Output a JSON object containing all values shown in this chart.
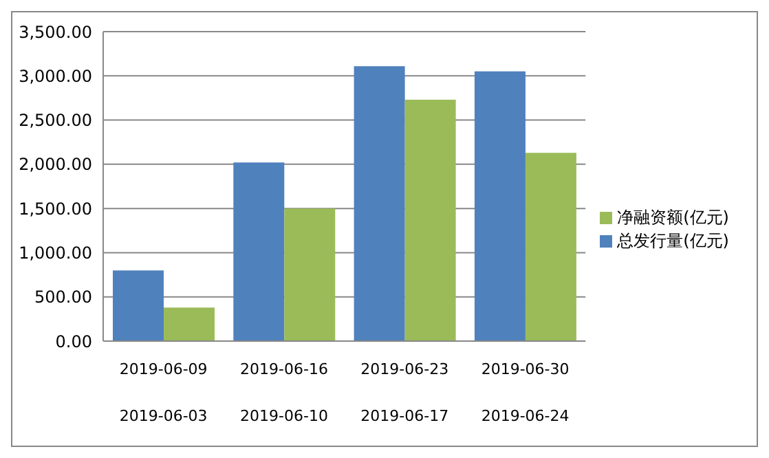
{
  "chart_data": {
    "type": "bar",
    "categories": [
      "2019-06-09\n2019-06-03",
      "2019-06-16\n2019-06-10",
      "2019-06-23\n2019-06-17",
      "2019-06-30\n2019-06-24"
    ],
    "series": [
      {
        "name": "总发行量(亿元)",
        "color": "#4f81bd",
        "values": [
          800,
          2020,
          3110,
          3050
        ]
      },
      {
        "name": "净融资额(亿元)",
        "color": "#9bbb59",
        "values": [
          380,
          1500,
          2730,
          2130
        ]
      }
    ],
    "ylim": [
      0,
      3500
    ],
    "yticks": [
      {
        "value": 0,
        "label": "0.00"
      },
      {
        "value": 500,
        "label": "500.00"
      },
      {
        "value": 1000,
        "label": "1,000.00"
      },
      {
        "value": 1500,
        "label": "1,500.00"
      },
      {
        "value": 2000,
        "label": "2,000.00"
      },
      {
        "value": 2500,
        "label": "2,500.00"
      },
      {
        "value": 3000,
        "label": "3,000.00"
      },
      {
        "value": 3500,
        "label": "3,500.00"
      }
    ],
    "grid": "y",
    "legend": "right"
  }
}
